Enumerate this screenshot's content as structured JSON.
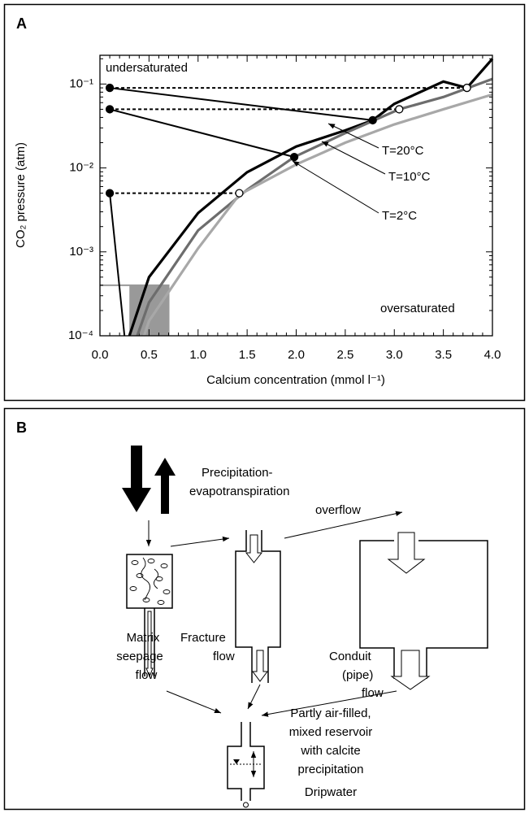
{
  "chart_data": {
    "type": "line",
    "panel_label": "A",
    "x_label": "Calcium concentration (mmol l⁻¹)",
    "y_label": "CO₂ pressure (atm)",
    "log_y": true,
    "xlim": [
      0,
      4
    ],
    "ylim": [
      0.0001,
      0.22
    ],
    "xticks": [
      {
        "value": 0,
        "label": "0.0"
      },
      0.5,
      {
        "value": 1,
        "label": "1.0"
      },
      1.5,
      {
        "value": 2,
        "label": "2.0"
      },
      2.5,
      {
        "value": 3,
        "label": "3.0"
      },
      3.5,
      {
        "value": 4,
        "label": "4.0"
      }
    ],
    "yticks": [
      {
        "value": 0.0001,
        "label": "10⁻⁴"
      },
      {
        "value": 0.001,
        "label": "10⁻³"
      },
      {
        "value": 0.01,
        "label": "10⁻²"
      },
      {
        "value": 0.1,
        "label": "10⁻¹"
      }
    ],
    "series": [
      {
        "name": "T=20°C",
        "color": "#000000",
        "x": [
          0.3,
          0.5,
          1.0,
          1.5,
          2.0,
          2.5,
          2.78,
          3.0,
          3.5,
          3.74,
          4.0
        ],
        "values": [
          0.0001,
          0.0005,
          0.0029,
          0.0089,
          0.018,
          0.028,
          0.037,
          0.058,
          0.107,
          0.09,
          0.2
        ]
      },
      {
        "name": "T=10°C",
        "color": "#6d6d6d",
        "x": [
          0.38,
          0.5,
          1.0,
          1.5,
          1.98,
          2.5,
          3.05,
          3.5,
          4.0
        ],
        "values": [
          0.0001,
          0.00025,
          0.0018,
          0.0055,
          0.0135,
          0.026,
          0.05,
          0.07,
          0.115
        ]
      },
      {
        "name": "T=2°C",
        "color": "#a8a8a8",
        "x": [
          0.45,
          0.5,
          1.0,
          1.42,
          2.0,
          2.5,
          3.0,
          3.5,
          4.0
        ],
        "values": [
          0.0001,
          0.00015,
          0.0011,
          0.0048,
          0.011,
          0.02,
          0.033,
          0.05,
          0.075
        ]
      }
    ],
    "lines": [
      {
        "style": "dotted",
        "x": [
          0.1,
          3.74
        ],
        "values": [
          0.09,
          0.09
        ]
      },
      {
        "style": "dotted",
        "x": [
          0.1,
          3.05
        ],
        "values": [
          0.05,
          0.05
        ]
      },
      {
        "style": "dotted",
        "x": [
          0.1,
          1.42
        ],
        "values": [
          0.005,
          0.005
        ]
      },
      {
        "style": "solid",
        "x": [
          0.1,
          2.78
        ],
        "values": [
          0.09,
          0.037
        ]
      },
      {
        "style": "solid",
        "x": [
          0.1,
          1.98
        ],
        "values": [
          0.05,
          0.0135
        ]
      },
      {
        "style": "solid",
        "x": [
          0.1,
          0.25
        ],
        "values": [
          0.005,
          0.0001
        ]
      }
    ],
    "points": [
      {
        "fill": "filled",
        "x": [
          0.1,
          0.1,
          0.1,
          2.78,
          1.98
        ],
        "values": [
          0.09,
          0.05,
          0.005,
          0.037,
          0.0135
        ]
      },
      {
        "fill": "open",
        "x": [
          3.74,
          3.05,
          1.42
        ],
        "values": [
          0.09,
          0.05,
          0.005
        ]
      }
    ],
    "shade": {
      "x": 0.7,
      "y": 0.0004,
      "color": "#999999"
    },
    "annotations": [
      "undersaturated",
      "oversaturated"
    ]
  },
  "diagram": {
    "panel_label": "B",
    "input": [
      "Precipitation-",
      "evapotranspiration"
    ],
    "overflow": "overflow",
    "matrix": [
      "Matrix",
      "seepage",
      "flow"
    ],
    "fracture": [
      "Fracture",
      "flow"
    ],
    "conduit": [
      "Conduit",
      "(pipe)",
      "flow"
    ],
    "reservoir": [
      "Partly air-filled,",
      "mixed reservoir",
      "with calcite",
      "precipitation"
    ],
    "output": "Dripwater"
  }
}
